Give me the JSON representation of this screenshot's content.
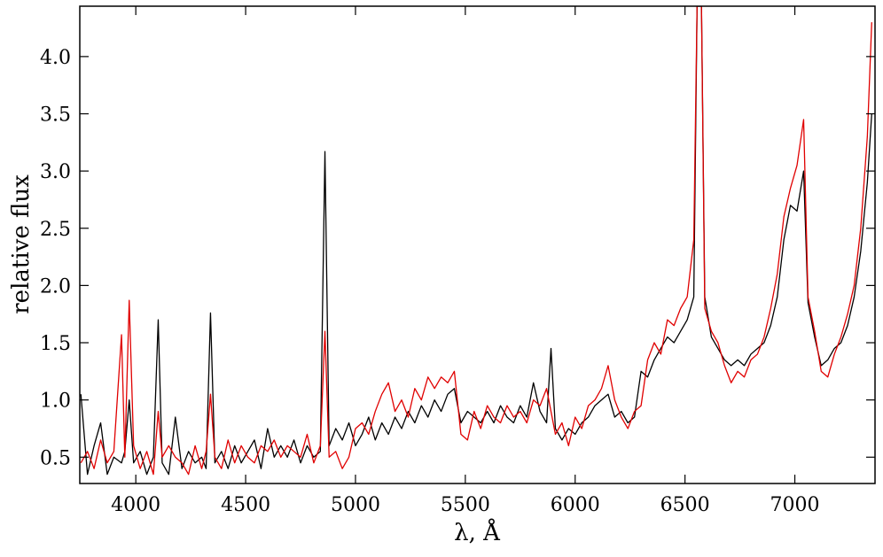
{
  "chart_data": {
    "type": "line",
    "xlabel": "λ, Å",
    "ylabel": "relative flux",
    "xlim": [
      3745,
      7365
    ],
    "ylim": [
      0.27,
      4.44
    ],
    "xticks": [
      4000,
      4500,
      5000,
      5500,
      6000,
      6500,
      7000
    ],
    "yticks": [
      0.5,
      {
        "value": 1.0,
        "label": "1.0"
      },
      1.5,
      {
        "value": 2.0,
        "label": "2.0"
      },
      2.5,
      {
        "value": 3.0,
        "label": "3.0"
      },
      3.5,
      {
        "value": 4.0,
        "label": "4.0"
      }
    ],
    "x": [
      3750,
      3780,
      3810,
      3840,
      3870,
      3900,
      3935,
      3950,
      3970,
      3990,
      4020,
      4050,
      4080,
      4102,
      4120,
      4150,
      4180,
      4210,
      4240,
      4270,
      4300,
      4320,
      4340,
      4360,
      4390,
      4420,
      4450,
      4480,
      4510,
      4540,
      4570,
      4600,
      4630,
      4660,
      4690,
      4720,
      4750,
      4780,
      4810,
      4840,
      4861,
      4880,
      4910,
      4940,
      4970,
      5000,
      5030,
      5060,
      5090,
      5120,
      5150,
      5180,
      5210,
      5240,
      5270,
      5300,
      5330,
      5360,
      5390,
      5420,
      5450,
      5480,
      5510,
      5540,
      5570,
      5600,
      5630,
      5660,
      5690,
      5720,
      5750,
      5780,
      5810,
      5840,
      5870,
      5890,
      5910,
      5940,
      5970,
      6000,
      6030,
      6060,
      6090,
      6120,
      6150,
      6180,
      6210,
      6240,
      6270,
      6300,
      6330,
      6360,
      6390,
      6420,
      6450,
      6480,
      6510,
      6540,
      6555,
      6575,
      6590,
      6620,
      6650,
      6680,
      6710,
      6740,
      6770,
      6800,
      6830,
      6860,
      6890,
      6920,
      6950,
      6980,
      7010,
      7040,
      7060,
      7090,
      7120,
      7150,
      7180,
      7210,
      7240,
      7270,
      7300,
      7330,
      7350
    ],
    "series": [
      {
        "color": "#000000",
        "values": [
          1.05,
          0.35,
          0.6,
          0.8,
          0.35,
          0.5,
          0.45,
          0.55,
          1.0,
          0.45,
          0.55,
          0.35,
          0.5,
          1.7,
          0.45,
          0.35,
          0.85,
          0.4,
          0.55,
          0.45,
          0.5,
          0.4,
          1.76,
          0.45,
          0.55,
          0.4,
          0.6,
          0.45,
          0.55,
          0.65,
          0.4,
          0.75,
          0.5,
          0.6,
          0.5,
          0.65,
          0.45,
          0.6,
          0.5,
          0.55,
          3.17,
          0.6,
          0.75,
          0.65,
          0.8,
          0.6,
          0.7,
          0.85,
          0.65,
          0.8,
          0.7,
          0.85,
          0.75,
          0.9,
          0.8,
          0.95,
          0.85,
          1.0,
          0.9,
          1.05,
          1.1,
          0.8,
          0.9,
          0.85,
          0.8,
          0.9,
          0.8,
          0.95,
          0.85,
          0.8,
          0.95,
          0.85,
          1.15,
          0.9,
          0.8,
          1.45,
          0.75,
          0.65,
          0.75,
          0.7,
          0.8,
          0.85,
          0.95,
          1.0,
          1.05,
          0.85,
          0.9,
          0.8,
          0.85,
          1.25,
          1.2,
          1.35,
          1.45,
          1.55,
          1.5,
          1.6,
          1.7,
          1.9,
          4.44,
          4.44,
          1.9,
          1.55,
          1.45,
          1.35,
          1.3,
          1.35,
          1.3,
          1.4,
          1.45,
          1.5,
          1.65,
          1.9,
          2.4,
          2.7,
          2.65,
          3.0,
          1.85,
          1.55,
          1.3,
          1.35,
          1.45,
          1.5,
          1.65,
          1.9,
          2.3,
          2.9,
          3.5
        ]
      },
      {
        "color": "#e00000",
        "values": [
          0.45,
          0.55,
          0.4,
          0.65,
          0.45,
          0.55,
          1.57,
          0.5,
          1.87,
          0.6,
          0.4,
          0.55,
          0.35,
          0.9,
          0.5,
          0.6,
          0.5,
          0.45,
          0.35,
          0.6,
          0.4,
          0.55,
          1.05,
          0.5,
          0.4,
          0.65,
          0.45,
          0.6,
          0.5,
          0.45,
          0.6,
          0.55,
          0.65,
          0.5,
          0.6,
          0.55,
          0.5,
          0.7,
          0.45,
          0.6,
          1.6,
          0.5,
          0.55,
          0.4,
          0.5,
          0.75,
          0.8,
          0.7,
          0.9,
          1.05,
          1.15,
          0.9,
          1.0,
          0.85,
          1.1,
          1.0,
          1.2,
          1.1,
          1.2,
          1.15,
          1.25,
          0.7,
          0.65,
          0.9,
          0.75,
          0.95,
          0.85,
          0.8,
          0.95,
          0.85,
          0.9,
          0.8,
          1.0,
          0.95,
          1.1,
          0.9,
          0.7,
          0.8,
          0.6,
          0.85,
          0.75,
          0.95,
          1.0,
          1.1,
          1.3,
          1.0,
          0.85,
          0.75,
          0.9,
          0.95,
          1.35,
          1.5,
          1.4,
          1.7,
          1.65,
          1.8,
          1.9,
          2.4,
          4.44,
          4.44,
          1.8,
          1.6,
          1.5,
          1.3,
          1.15,
          1.25,
          1.2,
          1.35,
          1.4,
          1.55,
          1.8,
          2.1,
          2.6,
          2.85,
          3.05,
          3.45,
          1.9,
          1.6,
          1.25,
          1.2,
          1.4,
          1.55,
          1.75,
          2.0,
          2.5,
          3.3,
          4.3
        ]
      }
    ]
  }
}
